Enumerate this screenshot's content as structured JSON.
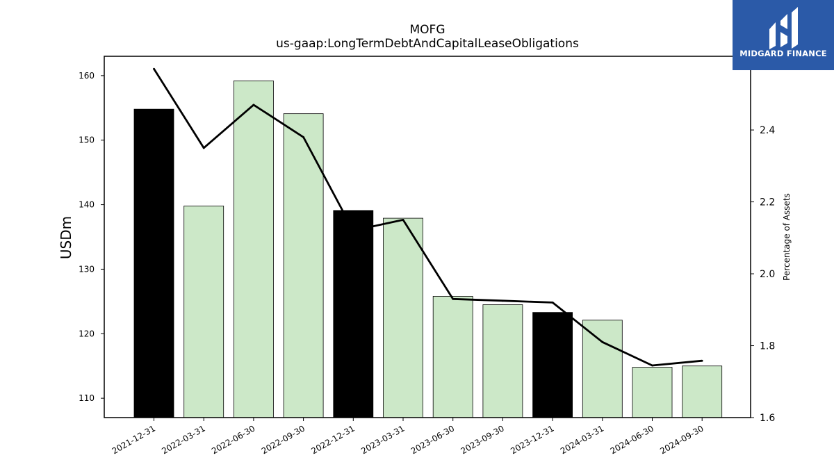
{
  "chart_data": {
    "type": "bar",
    "title": "MOFG",
    "subtitle": "us-gaap:LongTermDebtAndCapitalLeaseObligations",
    "categories": [
      "2021-12-31",
      "2022-03-31",
      "2022-06-30",
      "2022-09-30",
      "2022-12-31",
      "2023-03-31",
      "2023-06-30",
      "2023-09-30",
      "2023-12-31",
      "2024-03-31",
      "2024-06-30",
      "2024-09-30"
    ],
    "series": [
      {
        "type": "bar",
        "axis": "left",
        "values": [
          154.8,
          139.8,
          159.2,
          154.1,
          139.1,
          137.9,
          125.8,
          124.5,
          123.3,
          122.1,
          114.8,
          115.0
        ],
        "colors": [
          "#000000",
          "#cce8c8",
          "#cce8c8",
          "#cce8c8",
          "#000000",
          "#cce8c8",
          "#cce8c8",
          "#cce8c8",
          "#000000",
          "#cce8c8",
          "#cce8c8",
          "#cce8c8"
        ]
      },
      {
        "type": "line",
        "axis": "right",
        "values": [
          2.57,
          2.35,
          2.47,
          2.38,
          2.12,
          2.15,
          1.93,
          1.925,
          1.92,
          1.81,
          1.745,
          1.758
        ],
        "color": "#000000"
      }
    ],
    "ylabel": "USDm",
    "ylim": [
      107,
      163
    ],
    "yticks": [
      110,
      120,
      130,
      140,
      150,
      160
    ],
    "y2label": "Percentage of Assets",
    "y2lim": [
      1.6,
      2.605
    ],
    "y2ticks": [
      1.6,
      1.8,
      2.0,
      2.2,
      2.4
    ],
    "grid": false
  },
  "logo": {
    "text": "MIDGARD FINANCE",
    "background": "#2b5aa8"
  }
}
